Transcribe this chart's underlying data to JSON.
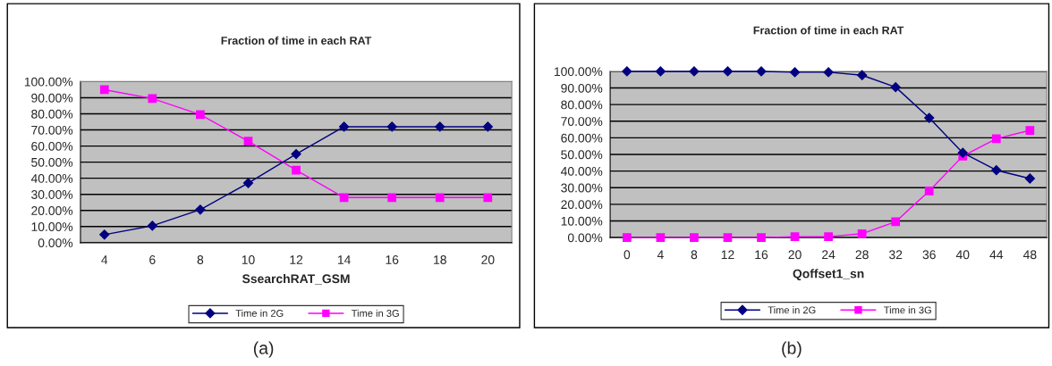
{
  "chart_data": [
    {
      "type": "line",
      "title": "Fraction of time in each RAT",
      "xlabel": "SsearchRAT_GSM",
      "categories": [
        "4",
        "6",
        "8",
        "10",
        "12",
        "14",
        "16",
        "18",
        "20"
      ],
      "series": [
        {
          "name": "Time in 2G",
          "color": "#000080",
          "marker": "diamond",
          "values": [
            5,
            10.5,
            20.5,
            37,
            55,
            72,
            72,
            72,
            72
          ]
        },
        {
          "name": "Time in 3G",
          "color": "#ff00ff",
          "marker": "square",
          "values": [
            95,
            89.5,
            79.5,
            63,
            45,
            28,
            28,
            28,
            28
          ]
        }
      ],
      "ylim": [
        0,
        100
      ],
      "yticks": [
        {
          "value": 0,
          "label": "0.00%"
        },
        {
          "value": 10,
          "label": "10.00%"
        },
        {
          "value": 20,
          "label": "20.00%"
        },
        {
          "value": 30,
          "label": "30.00%"
        },
        {
          "value": 40,
          "label": "40.00%"
        },
        {
          "value": 50,
          "label": "50.00%"
        },
        {
          "value": 60,
          "label": "60.00%"
        },
        {
          "value": 70,
          "label": "70.00%"
        },
        {
          "value": 80,
          "label": "80.00%"
        },
        {
          "value": 90,
          "label": "90.00%"
        },
        {
          "value": 100,
          "label": "100.00%"
        }
      ],
      "grid": "y",
      "legend": "bottom",
      "annotations": [
        "(a)"
      ]
    },
    {
      "type": "line",
      "title": "Fraction of time in each RAT",
      "xlabel": "Qoffset1_sn",
      "categories": [
        "0",
        "4",
        "8",
        "12",
        "16",
        "20",
        "24",
        "28",
        "32",
        "36",
        "40",
        "44",
        "48"
      ],
      "series": [
        {
          "name": "Time in 2G",
          "color": "#000080",
          "marker": "diamond",
          "values": [
            100,
            100,
            100,
            100,
            100,
            99.5,
            99.5,
            97.7,
            90.5,
            72,
            51,
            40.5,
            35.5
          ]
        },
        {
          "name": "Time in 3G",
          "color": "#ff00ff",
          "marker": "square",
          "values": [
            0,
            0,
            0,
            0,
            0,
            0.5,
            0.5,
            2.3,
            9.5,
            28,
            49,
            59.5,
            64.5
          ]
        }
      ],
      "ylim": [
        0,
        100
      ],
      "yticks": [
        {
          "value": 0,
          "label": "0.00%"
        },
        {
          "value": 10,
          "label": "10.00%"
        },
        {
          "value": 20,
          "label": "20.00%"
        },
        {
          "value": 30,
          "label": "30.00%"
        },
        {
          "value": 40,
          "label": "40.00%"
        },
        {
          "value": 50,
          "label": "50.00%"
        },
        {
          "value": 60,
          "label": "60.00%"
        },
        {
          "value": 70,
          "label": "70.00%"
        },
        {
          "value": 80,
          "label": "80.00%"
        },
        {
          "value": 90,
          "label": "90.00%"
        },
        {
          "value": 100,
          "label": "100.00%"
        }
      ],
      "grid": "y",
      "legend": "bottom",
      "annotations": [
        "(b)"
      ]
    }
  ]
}
